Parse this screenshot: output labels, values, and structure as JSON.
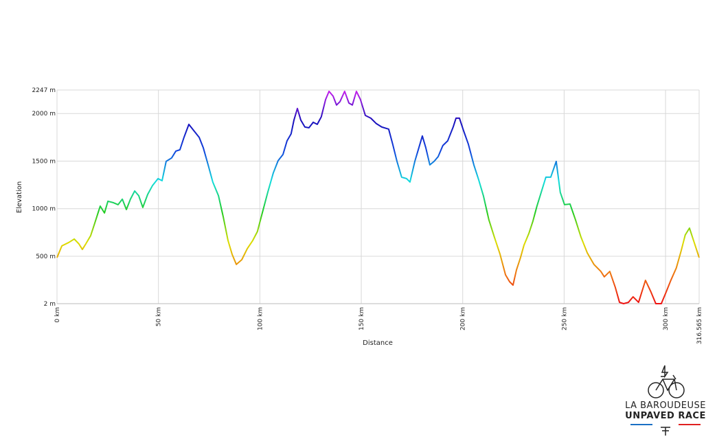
{
  "chart_data": {
    "type": "line",
    "xlabel": "Distance",
    "ylabel": "Elevation",
    "x": [
      0,
      2.4,
      5.8,
      8.5,
      10.8,
      12.5,
      14.2,
      16.6,
      18.6,
      21.3,
      23.4,
      25.1,
      27.8,
      30.1,
      32.2,
      34.2,
      36.2,
      38.3,
      40.3,
      42.3,
      44.7,
      47.1,
      49.8,
      51.8,
      53.8,
      56.5,
      58.6,
      60.6,
      62.6,
      65.0,
      67.4,
      70.1,
      72.1,
      74.5,
      76.8,
      79.6,
      81.9,
      84.3,
      86.3,
      88.4,
      91.1,
      93.8,
      96.5,
      98.8,
      101.2,
      103.9,
      106.6,
      109.0,
      111.4,
      113.4,
      115.4,
      116.8,
      118.5,
      120.2,
      122.2,
      124.2,
      126.3,
      128.3,
      130.3,
      132.4,
      134.1,
      136.1,
      137.8,
      139.5,
      141.8,
      143.9,
      145.6,
      147.6,
      149.6,
      152.0,
      154.7,
      157.4,
      160.1,
      163.5,
      165.5,
      167.6,
      169.9,
      172.3,
      174.0,
      176.4,
      178.4,
      180.1,
      181.8,
      183.8,
      185.9,
      187.9,
      190.2,
      192.6,
      195.3,
      196.7,
      198.4,
      200.4,
      202.8,
      205.5,
      207.9,
      210.2,
      212.9,
      215.6,
      218.4,
      221.1,
      223.1,
      224.8,
      226.5,
      228.5,
      230.2,
      232.6,
      234.6,
      236.6,
      238.7,
      241.0,
      243.4,
      246.1,
      248.1,
      250.2,
      252.9,
      255.6,
      258.3,
      261.4,
      264.7,
      268.1,
      269.8,
      272.5,
      275.2,
      277.3,
      279.3,
      281.7,
      284.0,
      286.7,
      290.1,
      292.8,
      295.2,
      297.9,
      300.3,
      302.6,
      305.3,
      307.7,
      309.7,
      311.8,
      313.8,
      316.565
    ],
    "series": [
      {
        "values": [
          486,
          609,
          645,
          681,
          630,
          572,
          630,
          717,
          847,
          1027,
          955,
          1078,
          1063,
          1042,
          1100,
          991,
          1100,
          1186,
          1136,
          1013,
          1150,
          1244,
          1316,
          1294,
          1497,
          1533,
          1605,
          1619,
          1749,
          1886,
          1821,
          1749,
          1641,
          1460,
          1280,
          1136,
          919,
          666,
          522,
          414,
          464,
          580,
          666,
          760,
          955,
          1172,
          1374,
          1504,
          1569,
          1713,
          1786,
          1930,
          2053,
          1930,
          1858,
          1850,
          1908,
          1886,
          1966,
          2146,
          2233,
          2183,
          2089,
          2125,
          2233,
          2110,
          2089,
          2233,
          2146,
          1980,
          1951,
          1894,
          1858,
          1836,
          1677,
          1497,
          1331,
          1316,
          1280,
          1497,
          1641,
          1764,
          1641,
          1460,
          1497,
          1547,
          1663,
          1713,
          1858,
          1951,
          1951,
          1821,
          1677,
          1460,
          1302,
          1136,
          883,
          702,
          522,
          305,
          233,
          197,
          356,
          486,
          616,
          739,
          868,
          1027,
          1172,
          1331,
          1331,
          1497,
          1172,
          1042,
          1049,
          883,
          702,
          536,
          414,
          341,
          284,
          341,
          175,
          16,
          2,
          16,
          74,
          16,
          247,
          125,
          2,
          2,
          125,
          247,
          377,
          558,
          724,
          796,
          666,
          486
        ]
      }
    ],
    "colors": [
      "#ee1111",
      "#ee7711",
      "#dddd00",
      "#22cc22",
      "#11dddd",
      "#1144dd",
      "#1a0dbb",
      "#cc22ee"
    ],
    "xlim": [
      0,
      316.565
    ],
    "ylim": [
      2,
      2247
    ],
    "xticks": [
      {
        "value": 0,
        "label": "0 km"
      },
      {
        "value": 50,
        "label": "50 km"
      },
      {
        "value": 100,
        "label": "100 km"
      },
      {
        "value": 150,
        "label": "150 km"
      },
      {
        "value": 200,
        "label": "200 km"
      },
      {
        "value": 250,
        "label": "250 km"
      },
      {
        "value": 300,
        "label": "300 km"
      },
      {
        "value": 316.565,
        "label": "316.565 km"
      }
    ],
    "yticks": [
      {
        "value": 2,
        "label": "2 m"
      },
      {
        "value": 500,
        "label": "500 m"
      },
      {
        "value": 1000,
        "label": "1000 m"
      },
      {
        "value": 1500,
        "label": "1500 m"
      },
      {
        "value": 2000,
        "label": "2000 m"
      },
      {
        "value": 2247,
        "label": "2247 m"
      }
    ],
    "grid": true
  },
  "logo": {
    "line1": "LA BAROUDEUSE",
    "line2": "UNPAVED RACE"
  }
}
